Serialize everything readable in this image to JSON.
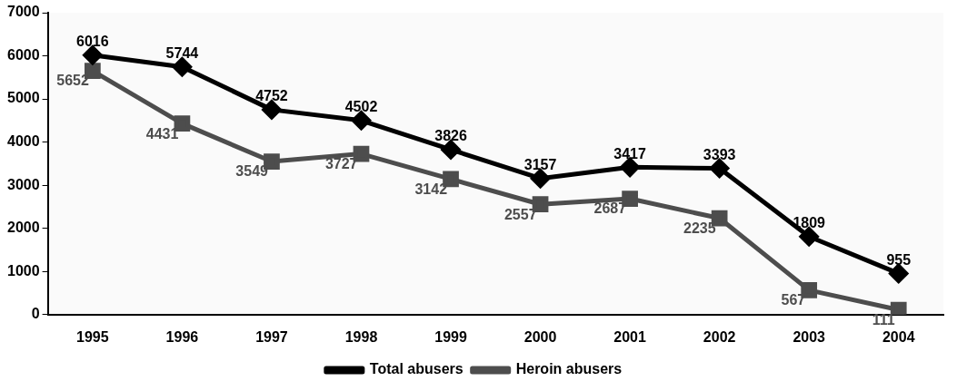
{
  "chart_data": {
    "type": "line",
    "categories": [
      "1995",
      "1996",
      "1997",
      "1998",
      "1999",
      "2000",
      "2001",
      "2002",
      "2003",
      "2004"
    ],
    "series": [
      {
        "name": "Total abusers",
        "color": "#000000",
        "marker": "diamond",
        "values": [
          6016,
          5744,
          4752,
          4502,
          3826,
          3157,
          3417,
          3393,
          1809,
          955
        ]
      },
      {
        "name": "Heroin abusers",
        "color": "#4d4d4d",
        "marker": "square",
        "values": [
          5652,
          4431,
          3549,
          3727,
          3142,
          2557,
          2687,
          2235,
          567,
          111
        ]
      }
    ],
    "ylim": [
      0,
      7000
    ],
    "yticks": [
      0,
      1000,
      2000,
      3000,
      4000,
      5000,
      6000,
      7000
    ],
    "grid": false,
    "legend": "bottom",
    "data_labels": true,
    "line_style": "solid"
  }
}
